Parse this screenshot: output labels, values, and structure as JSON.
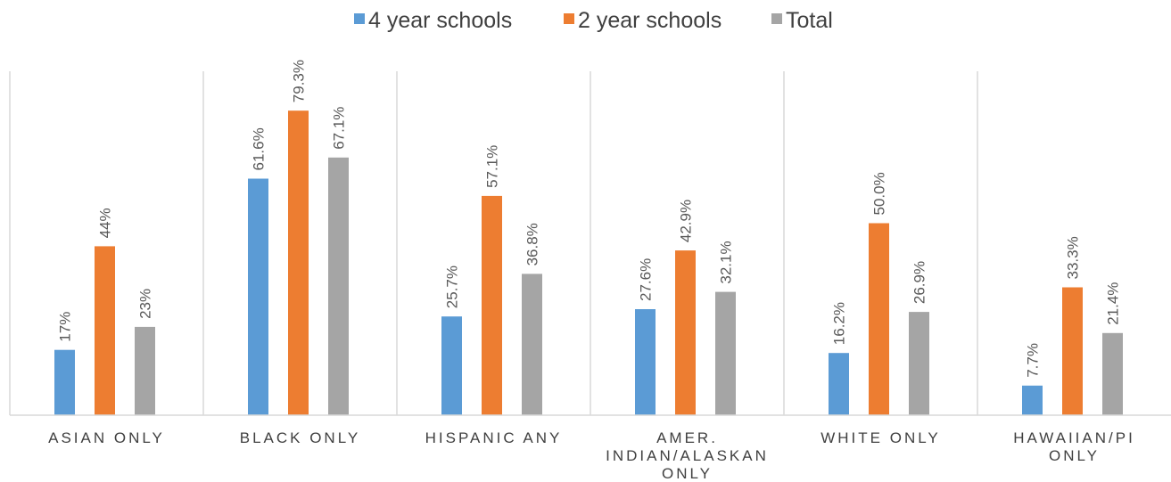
{
  "chart_data": {
    "type": "bar",
    "categories": [
      [
        "ASIAN ONLY"
      ],
      [
        "BLACK ONLY"
      ],
      [
        "HISPANIC ANY"
      ],
      [
        "AMER.",
        "INDIAN/ALASKAN",
        "ONLY"
      ],
      [
        "WHITE ONLY"
      ],
      [
        "HAWAIIAN/PI",
        "ONLY"
      ]
    ],
    "series": [
      {
        "name": "4 year schools",
        "color": "#5B9BD5",
        "values": [
          17,
          61.6,
          25.7,
          27.6,
          16.2,
          7.7
        ],
        "labels": [
          "17%",
          "61.6%",
          "25.7%",
          "27.6%",
          "16.2%",
          "7.7%"
        ]
      },
      {
        "name": "2 year schools",
        "color": "#ED7D31",
        "values": [
          44,
          79.3,
          57.1,
          42.9,
          50.0,
          33.3
        ],
        "labels": [
          "44%",
          "79.3%",
          "57.1%",
          "42.9%",
          "50.0%",
          "33.3%"
        ]
      },
      {
        "name": "Total",
        "color": "#A5A5A5",
        "values": [
          23,
          67.1,
          36.8,
          32.1,
          26.9,
          21.4
        ],
        "labels": [
          "23%",
          "67.1%",
          "36.8%",
          "32.1%",
          "26.9%",
          "21.4%"
        ]
      }
    ],
    "ylim": [
      0,
      100
    ],
    "grid": false,
    "legend_position": "top-center",
    "category_separators": true
  }
}
